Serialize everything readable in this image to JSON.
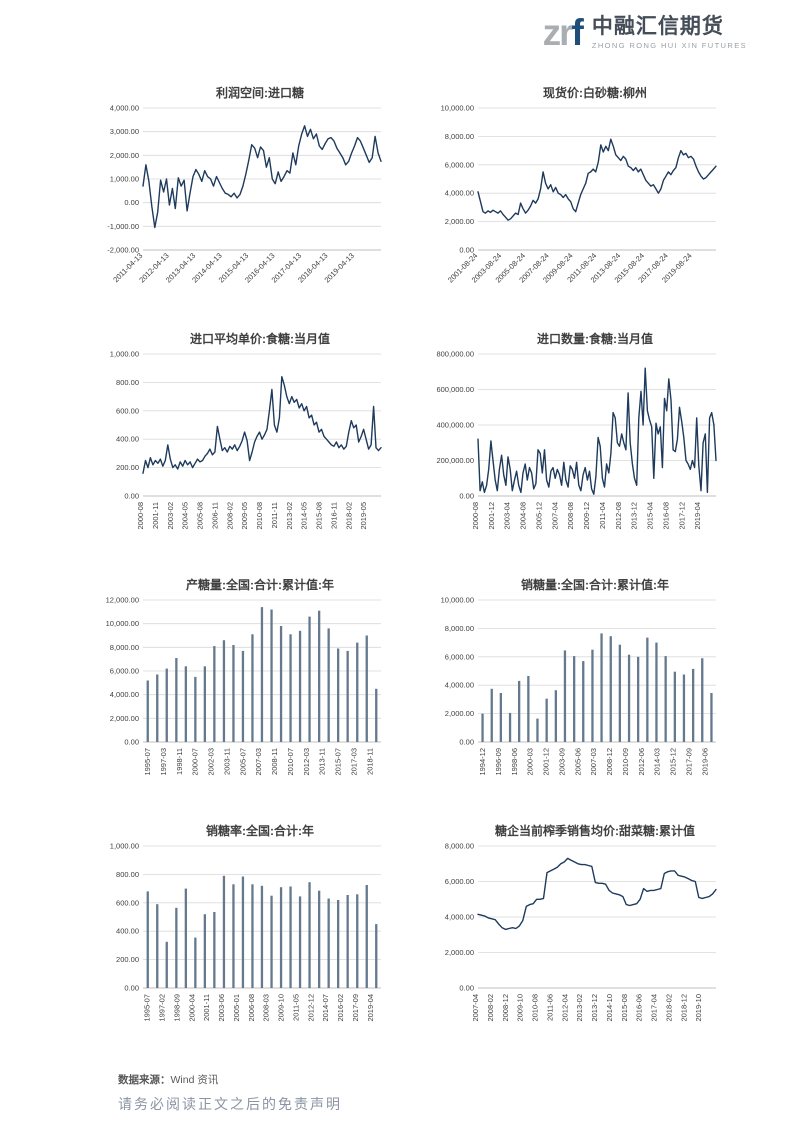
{
  "header": {
    "logo": {
      "mark_zr": "zr",
      "mark_f": "f",
      "brand_cn": "中融汇信期货",
      "brand_en": "ZHONG RONG HUI XIN FUTURES",
      "mark_gray": "#a9aeb3",
      "mark_blue": "#1f4e79"
    }
  },
  "colors": {
    "line": "#1e3a5c",
    "bar": "#64798e",
    "grid": "#d9d9d9",
    "axis": "#bfbfbf",
    "tick_text": "#404040"
  },
  "footer": {
    "source_label": "数据来源：",
    "source_value": "Wind 资讯",
    "disclaimer": "请务必阅读正文之后的免责声明"
  },
  "chart_data": [
    {
      "id": "profit-import-sugar",
      "type": "line",
      "title": "利润空间:进口糖",
      "xlabel": "",
      "ylabel": "",
      "grid": true,
      "ylim": [
        -2000,
        4000
      ],
      "yticks": [
        "4,000.00",
        "3,000.00",
        "2,000.00",
        "1,000.00",
        "0.00",
        "-1,000.00",
        "-2,000.00"
      ],
      "xticks": [
        "2011-04-13",
        "2012-04-13",
        "2013-04-13",
        "2014-04-13",
        "2015-04-13",
        "2016-04-13",
        "2017-04-13",
        "2018-04-13",
        "2019-04-13"
      ],
      "xtick_rotation": 45,
      "values": [
        700,
        1600,
        900,
        -150,
        -1050,
        -400,
        950,
        450,
        1000,
        -100,
        600,
        -250,
        1050,
        700,
        950,
        -350,
        400,
        1100,
        1400,
        1200,
        900,
        1350,
        1100,
        1000,
        700,
        1100,
        850,
        600,
        400,
        350,
        250,
        400,
        200,
        350,
        700,
        1200,
        1800,
        2450,
        2300,
        1900,
        2350,
        2200,
        1500,
        1900,
        1000,
        800,
        1300,
        900,
        1100,
        1350,
        1250,
        2100,
        1600,
        2400,
        2900,
        3250,
        2800,
        3100,
        2700,
        2900,
        2400,
        2250,
        2500,
        2700,
        2750,
        2600,
        2300,
        2100,
        1900,
        1600,
        1750,
        2100,
        2400,
        2750,
        2600,
        2300,
        2000,
        1700,
        1900,
        2800,
        2100,
        1750
      ]
    },
    {
      "id": "spot-price-white-sugar-liuzhou",
      "type": "line",
      "title": "现货价:白砂糖:柳州",
      "xlabel": "",
      "ylabel": "",
      "grid": true,
      "ylim": [
        0,
        10000
      ],
      "yticks": [
        "10,000.00",
        "8,000.00",
        "6,000.00",
        "4,000.00",
        "2,000.00",
        "0.00"
      ],
      "xticks": [
        "2001-08-24",
        "2003-08-24",
        "2005-08-24",
        "2007-08-24",
        "2009-08-24",
        "2011-08-24",
        "2013-08-24",
        "2015-08-24",
        "2017-08-24",
        "2019-08-24"
      ],
      "xtick_rotation": 45,
      "values": [
        4100,
        3400,
        2700,
        2600,
        2750,
        2650,
        2800,
        2700,
        2600,
        2750,
        2500,
        2300,
        2100,
        2200,
        2400,
        2600,
        2500,
        3300,
        2900,
        2600,
        2800,
        3100,
        3500,
        3300,
        3600,
        4300,
        5500,
        4700,
        4300,
        4600,
        4100,
        4400,
        4000,
        3900,
        3700,
        3900,
        3600,
        3400,
        2900,
        2700,
        3300,
        3900,
        4300,
        4700,
        5400,
        5500,
        5700,
        5500,
        6200,
        7400,
        6900,
        7300,
        7000,
        7800,
        7300,
        6700,
        6500,
        6300,
        6600,
        6400,
        5900,
        5800,
        5600,
        5800,
        5500,
        5700,
        5300,
        4900,
        4700,
        4500,
        4600,
        4300,
        4000,
        4300,
        4900,
        5200,
        5500,
        5300,
        5600,
        5800,
        6500,
        7000,
        6700,
        6800,
        6500,
        6600,
        6400,
        5900,
        5500,
        5200,
        5000,
        5100,
        5300,
        5500,
        5700,
        5900
      ]
    },
    {
      "id": "import-avg-unit-price-sugar-monthly",
      "type": "line",
      "title": "进口平均单价:食糖:当月值",
      "xlabel": "",
      "ylabel": "",
      "grid": true,
      "ylim": [
        0,
        1000
      ],
      "yticks": [
        "1,000.00",
        "800.00",
        "600.00",
        "400.00",
        "200.00",
        "0.00"
      ],
      "xticks": [
        "2000-08",
        "2001-11",
        "2003-02",
        "2004-05",
        "2005-08",
        "2006-11",
        "2008-02",
        "2009-05",
        "2010-08",
        "2011-11",
        "2013-02",
        "2014-05",
        "2015-08",
        "2016-11",
        "2018-02",
        "2019-05"
      ],
      "xtick_rotation": 90,
      "values": [
        160,
        250,
        200,
        270,
        220,
        250,
        230,
        260,
        210,
        250,
        360,
        260,
        200,
        220,
        190,
        240,
        210,
        250,
        220,
        240,
        200,
        230,
        260,
        240,
        250,
        280,
        300,
        330,
        290,
        310,
        490,
        400,
        320,
        340,
        310,
        350,
        330,
        360,
        320,
        350,
        390,
        450,
        390,
        250,
        310,
        380,
        420,
        450,
        400,
        430,
        470,
        600,
        750,
        500,
        450,
        550,
        840,
        780,
        700,
        650,
        700,
        660,
        680,
        620,
        650,
        600,
        630,
        550,
        570,
        500,
        520,
        450,
        470,
        420,
        400,
        380,
        360,
        350,
        380,
        340,
        360,
        330,
        350,
        450,
        530,
        480,
        500,
        380,
        420,
        470,
        400,
        330,
        360,
        630,
        340,
        320,
        340
      ]
    },
    {
      "id": "import-quantity-sugar-monthly",
      "type": "line",
      "title": "进口数量:食糖:当月值",
      "xlabel": "",
      "ylabel": "",
      "grid": true,
      "ylim": [
        0,
        800000
      ],
      "yticks": [
        "800,000.00",
        "600,000.00",
        "400,000.00",
        "200,000.00",
        "0.00"
      ],
      "xticks": [
        "2000-08",
        "2001-12",
        "2003-04",
        "2004-08",
        "2005-12",
        "2007-04",
        "2008-08",
        "2009-12",
        "2011-04",
        "2012-08",
        "2013-12",
        "2015-04",
        "2016-08",
        "2017-12",
        "2019-04"
      ],
      "xtick_rotation": 90,
      "values": [
        320000,
        30000,
        80000,
        20000,
        60000,
        150000,
        310000,
        200000,
        90000,
        30000,
        150000,
        230000,
        120000,
        60000,
        220000,
        150000,
        30000,
        90000,
        140000,
        60000,
        20000,
        130000,
        180000,
        90000,
        160000,
        130000,
        40000,
        70000,
        260000,
        240000,
        130000,
        260000,
        90000,
        50000,
        140000,
        160000,
        100000,
        150000,
        120000,
        60000,
        190000,
        90000,
        50000,
        170000,
        150000,
        100000,
        190000,
        60000,
        30000,
        120000,
        160000,
        90000,
        140000,
        40000,
        10000,
        110000,
        330000,
        280000,
        100000,
        50000,
        180000,
        130000,
        240000,
        470000,
        440000,
        300000,
        280000,
        350000,
        300000,
        260000,
        580000,
        300000,
        180000,
        100000,
        60000,
        440000,
        590000,
        400000,
        720000,
        480000,
        430000,
        390000,
        100000,
        410000,
        350000,
        390000,
        160000,
        550000,
        480000,
        660000,
        540000,
        260000,
        250000,
        320000,
        500000,
        420000,
        330000,
        200000,
        180000,
        150000,
        200000,
        160000,
        440000,
        170000,
        30000,
        300000,
        350000,
        20000,
        440000,
        470000,
        400000,
        200000
      ]
    },
    {
      "id": "sugar-production-national-cumulative-year",
      "type": "bar",
      "title": "产糖量:全国:合计:累计值:年",
      "xlabel": "",
      "ylabel": "",
      "grid": true,
      "ylim": [
        0,
        12000
      ],
      "yticks": [
        "12,000.00",
        "10,000.00",
        "8,000.00",
        "6,000.00",
        "4,000.00",
        "2,000.00",
        "0.00"
      ],
      "xticks": [
        "1995-07",
        "1997-03",
        "1998-11",
        "2000-07",
        "2002-03",
        "2003-11",
        "2005-07",
        "2007-03",
        "2008-11",
        "2010-07",
        "2012-03",
        "2013-11",
        "2015-07",
        "2017-03",
        "2018-11"
      ],
      "xtick_rotation": 90,
      "values": [
        5200,
        5700,
        6200,
        7100,
        6400,
        5500,
        6400,
        8100,
        8600,
        8200,
        7700,
        9100,
        11400,
        11200,
        9800,
        9100,
        9400,
        10600,
        11100,
        9600,
        7900,
        7700,
        8400,
        9000,
        4500
      ]
    },
    {
      "id": "sugar-sales-national-cumulative-year",
      "type": "bar",
      "title": "销糖量:全国:合计:累计值:年",
      "xlabel": "",
      "ylabel": "",
      "grid": true,
      "ylim": [
        0,
        10000
      ],
      "yticks": [
        "10,000.00",
        "8,000.00",
        "6,000.00",
        "4,000.00",
        "2,000.00",
        "0.00"
      ],
      "xticks": [
        "1994-12",
        "1996-09",
        "1998-06",
        "2000-03",
        "2001-12",
        "2003-09",
        "2005-06",
        "2007-03",
        "2008-12",
        "2010-09",
        "2012-06",
        "2014-03",
        "2015-12",
        "2017-09",
        "2019-06"
      ],
      "xtick_rotation": 90,
      "values": [
        2000,
        3750,
        3450,
        2050,
        4300,
        4650,
        1650,
        3050,
        3650,
        6450,
        6050,
        5700,
        6500,
        7650,
        7450,
        6850,
        6150,
        6000,
        7350,
        7000,
        6050,
        4950,
        4750,
        5150,
        5900,
        3450
      ]
    },
    {
      "id": "sugar-sales-rate-national-year",
      "type": "bar",
      "title": "销糖率:全国:合计:年",
      "xlabel": "",
      "ylabel": "",
      "grid": true,
      "ylim": [
        0,
        1000
      ],
      "yticks": [
        "1,000.00",
        "800.00",
        "600.00",
        "400.00",
        "200.00",
        "0.00"
      ],
      "xticks": [
        "1995-07",
        "1997-02",
        "1998-09",
        "2000-04",
        "2001-11",
        "2003-06",
        "2005-01",
        "2006-08",
        "2008-03",
        "2009-10",
        "2011-05",
        "2012-12",
        "2014-07",
        "2016-02",
        "2017-09",
        "2019-04"
      ],
      "xtick_rotation": 90,
      "values": [
        680,
        590,
        325,
        565,
        700,
        355,
        520,
        535,
        790,
        730,
        785,
        730,
        720,
        650,
        710,
        715,
        645,
        745,
        685,
        630,
        620,
        655,
        660,
        725,
        450
      ]
    },
    {
      "id": "sugar-enterprise-season-avg-price-beet-cumulative",
      "type": "line",
      "title": "糖企当前榨季销售均价:甜菜糖:累计值",
      "xlabel": "",
      "ylabel": "",
      "grid": true,
      "ylim": [
        0,
        8000
      ],
      "yticks": [
        "8,000.00",
        "6,000.00",
        "4,000.00",
        "2,000.00",
        "0.00"
      ],
      "xticks": [
        "2007-04",
        "2008-02",
        "2008-12",
        "2009-10",
        "2010-08",
        "2011-06",
        "2012-04",
        "2013-02",
        "2013-12",
        "2014-10",
        "2015-08",
        "2016-06",
        "2017-04",
        "2018-02",
        "2018-12",
        "2019-10"
      ],
      "xtick_rotation": 90,
      "values": [
        4150,
        4100,
        4050,
        3950,
        3900,
        3850,
        3600,
        3400,
        3300,
        3350,
        3400,
        3350,
        3500,
        3800,
        4600,
        4700,
        4750,
        5000,
        5000,
        5050,
        6500,
        6600,
        6700,
        6800,
        7000,
        7100,
        7300,
        7200,
        7100,
        7000,
        6950,
        6950,
        6900,
        6850,
        5950,
        5900,
        5900,
        5850,
        5500,
        5350,
        5300,
        5250,
        5150,
        4700,
        4650,
        4700,
        4750,
        5000,
        5600,
        5450,
        5500,
        5500,
        5550,
        5600,
        6450,
        6550,
        6600,
        6600,
        6350,
        6300,
        6250,
        6150,
        6050,
        6000,
        5100,
        5050,
        5100,
        5150,
        5300,
        5550
      ]
    }
  ]
}
